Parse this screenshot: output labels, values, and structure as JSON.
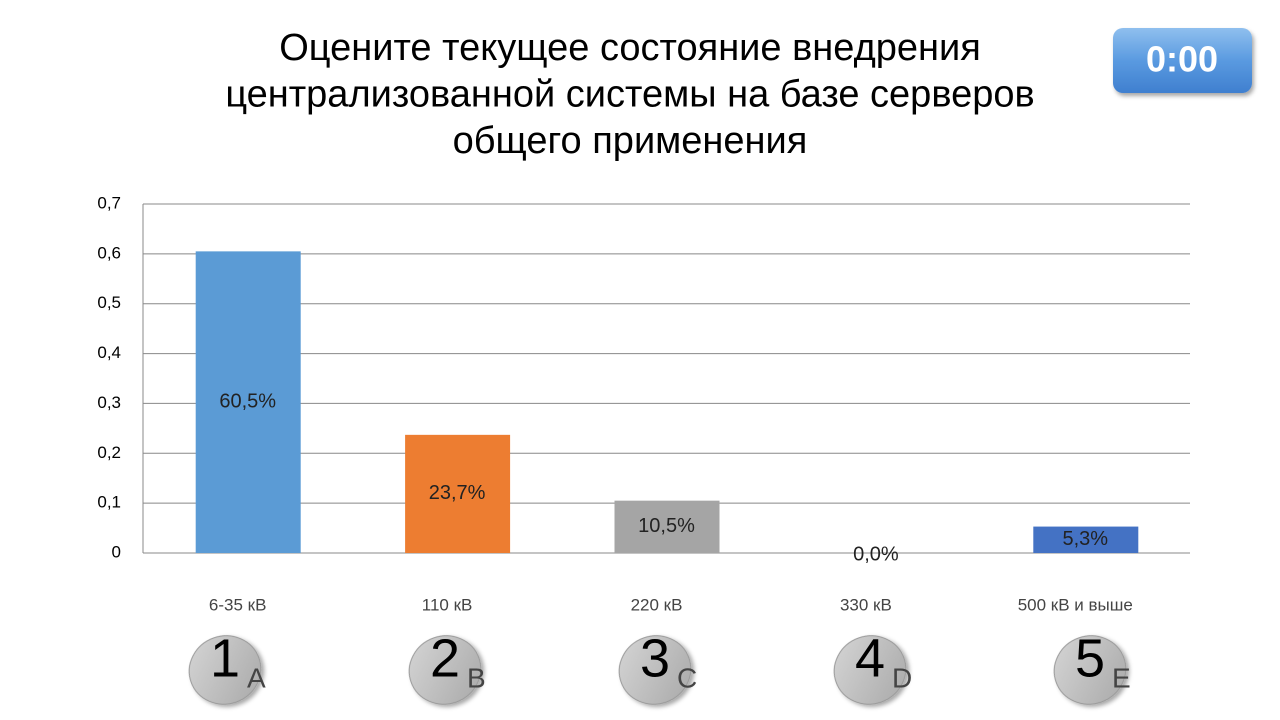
{
  "chart_data": {
    "type": "bar",
    "title": [
      "Оцените текущее состояние внедрения",
      "централизованной системы на базе серверов",
      "общего применения"
    ],
    "timer": "0:00",
    "categories": [
      "6-35 кВ",
      "110 кВ",
      "220 кВ",
      "330 кВ",
      "500 кВ и выше"
    ],
    "values": [
      0.605,
      0.237,
      0.105,
      0,
      0.053
    ],
    "value_labels": [
      "60,5%",
      "23,7%",
      "10,5%",
      "0,0%",
      "5,3%"
    ],
    "colors": [
      "#5b9bd5",
      "#ed7d31",
      "#a5a5a5",
      "#ffc000",
      "#4472c4"
    ],
    "keypad": [
      {
        "number": "1",
        "letter": "A"
      },
      {
        "number": "2",
        "letter": "B"
      },
      {
        "number": "3",
        "letter": "C"
      },
      {
        "number": "4",
        "letter": "D"
      },
      {
        "number": "5",
        "letter": "E"
      }
    ],
    "ylim": [
      0,
      0.7
    ],
    "yticks": [
      0,
      {
        "value": 0.1,
        "label": "0,1"
      },
      {
        "value": 0.2,
        "label": "0,2"
      },
      {
        "value": 0.3,
        "label": "0,3"
      },
      {
        "value": 0.4,
        "label": "0,4"
      },
      {
        "value": 0.5,
        "label": "0,5"
      },
      {
        "value": 0.6,
        "label": "0,6"
      },
      {
        "value": 0.7,
        "label": "0,7"
      }
    ],
    "grid": true
  }
}
